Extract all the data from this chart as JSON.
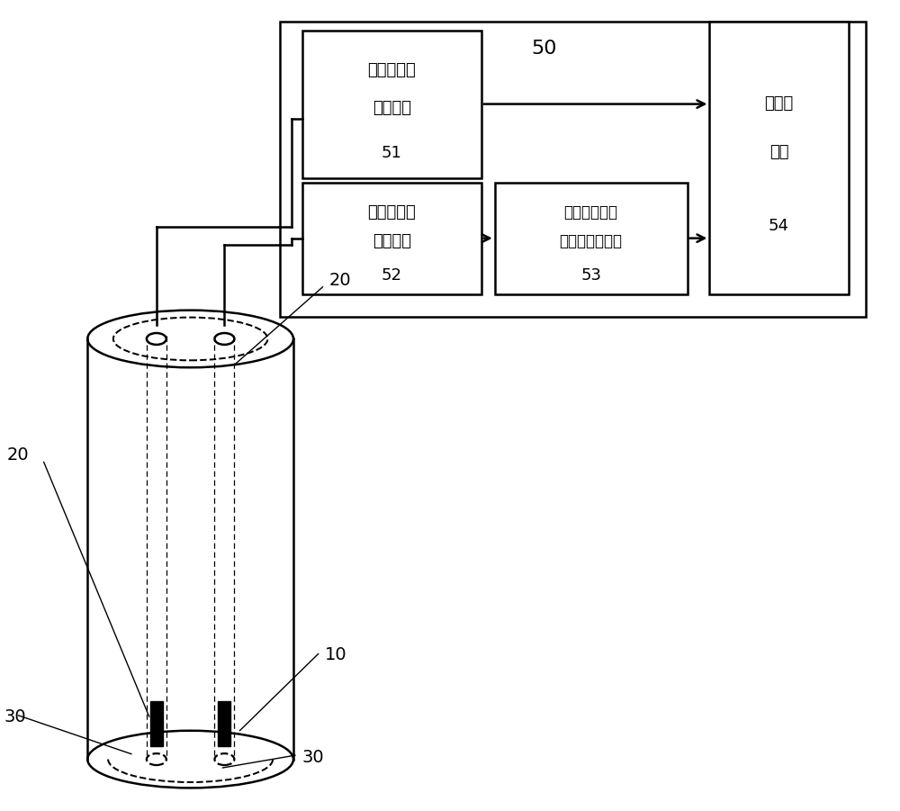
{
  "bg_color": "#ffffff",
  "line_color": "#000000",
  "label_50": "50",
  "label_51_l1": "超声波信号",
  "label_51_l2": "发射电路",
  "label_51_l3": "51",
  "label_52_l1": "超声波信号",
  "label_52_l2": "接收电路",
  "label_52_l3": "52",
  "label_53_l1": "智能放大模块",
  "label_53_l2": "及模数转换电路",
  "label_53_l3": "53",
  "label_54_l1": "逻辑控",
  "label_54_l2": "制器",
  "label_54_l3": "54",
  "label_10": "10",
  "label_20a": "20",
  "label_20b": "20",
  "label_30a": "30",
  "label_30b": "30"
}
